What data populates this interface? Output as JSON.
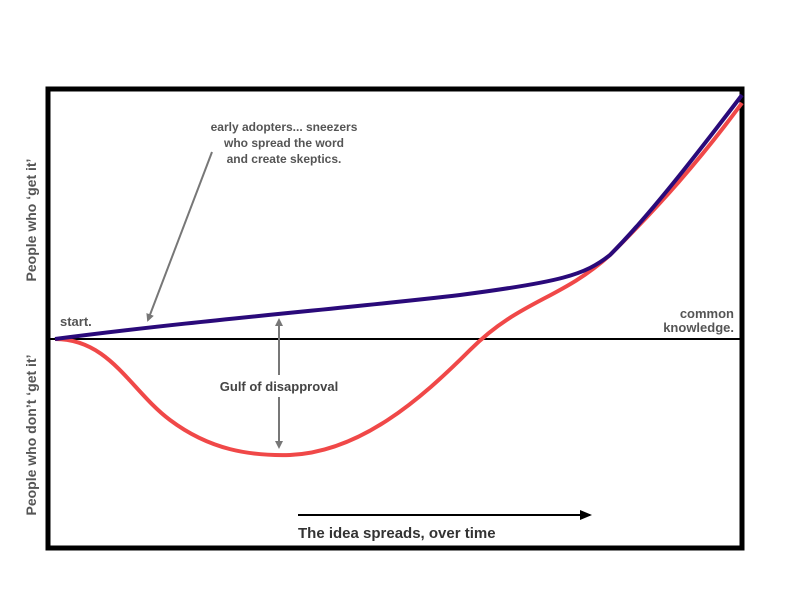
{
  "labels": {
    "y_top": "People who ‘get it’",
    "y_bottom": "People who don’t ‘get it’",
    "start": "start.",
    "common_1": "common",
    "common_2": "knowledge.",
    "annotation_1": "early adopters... sneezers",
    "annotation_2": "who spread the word",
    "annotation_3": "and create skeptics.",
    "gulf": "Gulf of disapproval",
    "x_axis": "The idea spreads, over time"
  },
  "colors": {
    "adopters_line": "#2a0a7a",
    "skeptics_line": "#f04848",
    "frame": "#000000",
    "annotation": "#555555"
  }
}
